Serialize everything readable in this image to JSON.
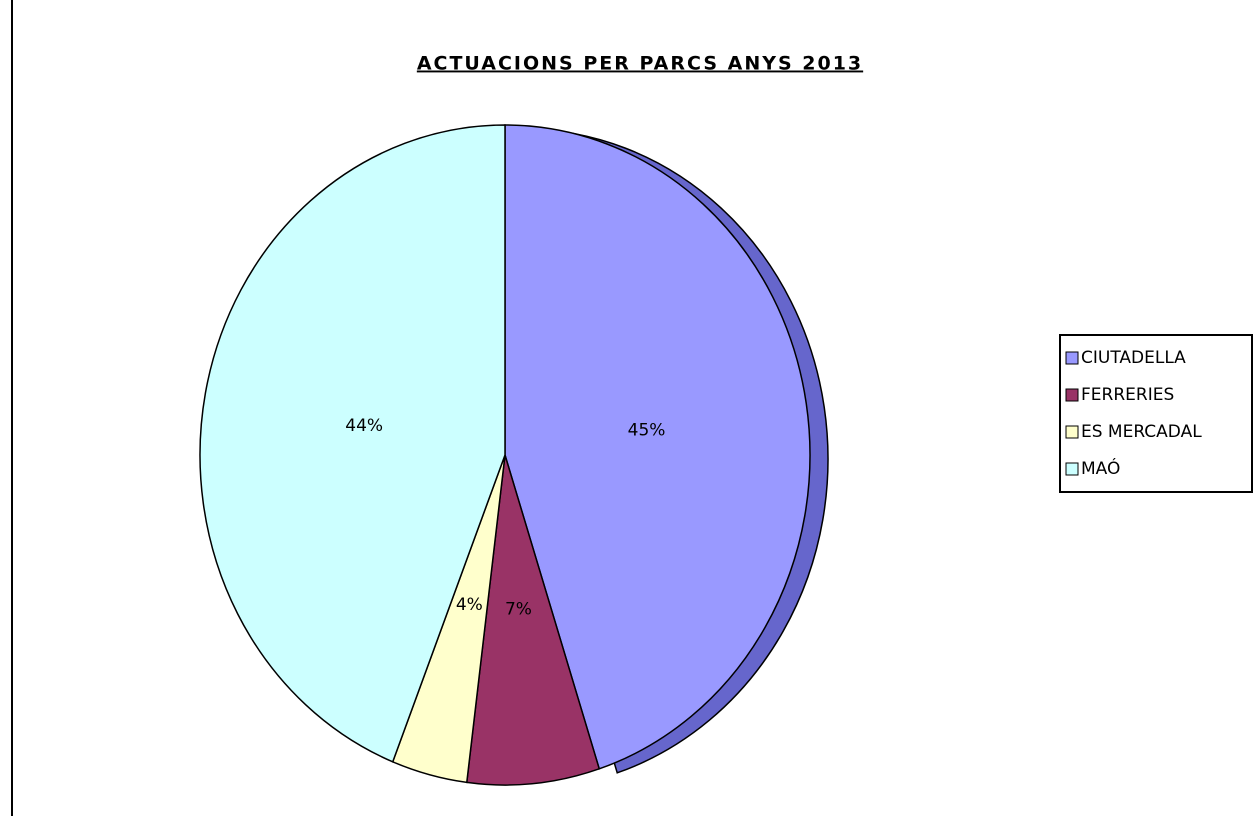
{
  "chart_data": {
    "type": "pie",
    "title": "ACTUACIONS PER PARCS ANYS 2013",
    "categories": [
      "CIUTADELLA",
      "FERRERIES",
      "ES MERCADAL",
      "MAÓ"
    ],
    "values": [
      45,
      7,
      4,
      44
    ],
    "value_labels": [
      "45%",
      "7%",
      "4%",
      "44%"
    ],
    "colors": [
      "#9999ff",
      "#993366",
      "#ffffcc",
      "#ccffff"
    ],
    "legend": "right"
  }
}
